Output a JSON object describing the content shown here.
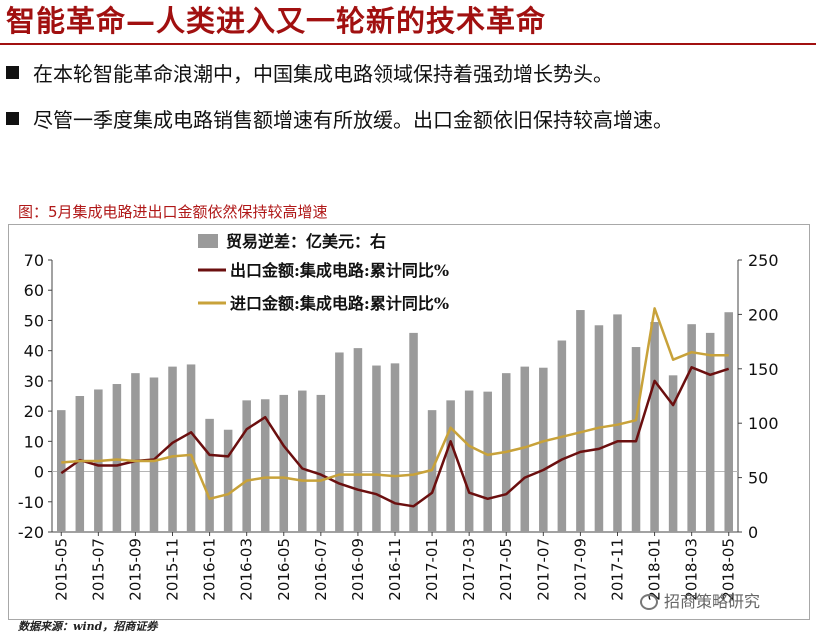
{
  "slide": {
    "title": "智能革命—人类进入又一轮新的技术革命",
    "bullets": [
      "在本轮智能革命浪潮中，中国集成电路领域保持着强劲增长势头。",
      "尽管一季度集成电路销售额增速有所放缓。出口金额依旧保持较高增速。"
    ],
    "chart_caption": "图：5月集成电路进出口金额依然保持较高增速",
    "source": "数据来源：wind，招商证券",
    "watermark": "招商策略研究",
    "colors": {
      "title": "#a11010",
      "bars": "#9a9a9a",
      "export": "#6b0f0f",
      "import": "#c8a23a"
    }
  },
  "chart_data": {
    "type": "bar+line",
    "title": "5月集成电路进出口金额依然保持较高增速",
    "categories": [
      "2015-05",
      "2015-06",
      "2015-07",
      "2015-08",
      "2015-09",
      "2015-10",
      "2015-11",
      "2015-12",
      "2016-01",
      "2016-02",
      "2016-03",
      "2016-04",
      "2016-05",
      "2016-06",
      "2016-07",
      "2016-08",
      "2016-09",
      "2016-10",
      "2016-11",
      "2016-12",
      "2017-01",
      "2017-02",
      "2017-03",
      "2017-04",
      "2017-05",
      "2017-06",
      "2017-07",
      "2017-08",
      "2017-09",
      "2017-10",
      "2017-11",
      "2017-12",
      "2018-01",
      "2018-02",
      "2018-03",
      "2018-04",
      "2018-05"
    ],
    "x_tick_labels": [
      "2015-05",
      "2015-07",
      "2015-09",
      "2015-11",
      "2016-01",
      "2016-03",
      "2016-05",
      "2016-07",
      "2016-09",
      "2016-11",
      "2017-01",
      "2017-03",
      "2017-05",
      "2017-07",
      "2017-09",
      "2017-11",
      "2018-01",
      "2018-03",
      "2018-05"
    ],
    "left_axis": {
      "min": -20,
      "max": 70,
      "ticks": [
        "-20",
        "-10",
        "0",
        "10",
        "20",
        "30",
        "40",
        "50",
        "60",
        "70"
      ]
    },
    "right_axis": {
      "min": 0,
      "max": 250,
      "ticks": [
        "0",
        "50",
        "100",
        "150",
        "200",
        "250"
      ]
    },
    "series": [
      {
        "name": "贸易逆差：亿美元：右",
        "type": "bar",
        "axis": "right",
        "values": [
          112,
          125,
          131,
          136,
          146,
          142,
          152,
          154,
          104,
          94,
          121,
          122,
          126,
          130,
          126,
          165,
          169,
          153,
          155,
          183,
          112,
          121,
          130,
          129,
          146,
          152,
          151,
          176,
          204,
          190,
          200,
          170,
          193,
          144,
          191,
          183,
          202
        ]
      },
      {
        "name": "出口金额:集成电路:累计同比%",
        "type": "line",
        "axis": "left",
        "values": [
          -0.5,
          3.8,
          2,
          2,
          3.5,
          4,
          9.5,
          13,
          5.5,
          5,
          14,
          18,
          8.5,
          1,
          -1,
          -4,
          -6,
          -7.5,
          -10.5,
          -11.5,
          -7,
          10,
          -7,
          -9,
          -7.5,
          -2,
          0.5,
          4,
          6.5,
          7.5,
          10,
          10,
          30,
          22,
          34.5,
          32,
          34
        ]
      },
      {
        "name": "进口金额:集成电路:累计同比%",
        "type": "line",
        "axis": "left",
        "values": [
          3,
          3.5,
          3.5,
          4,
          3.5,
          3.5,
          5,
          5.5,
          -9,
          -7.5,
          -3,
          -2,
          -2,
          -3,
          -3,
          -1,
          -1,
          -1,
          -1.5,
          -1,
          0.5,
          14.5,
          8.5,
          5.5,
          6.5,
          8,
          10,
          11.5,
          13,
          14.5,
          15.5,
          17,
          54,
          37,
          39.5,
          38.5,
          38.5
        ]
      }
    ]
  }
}
